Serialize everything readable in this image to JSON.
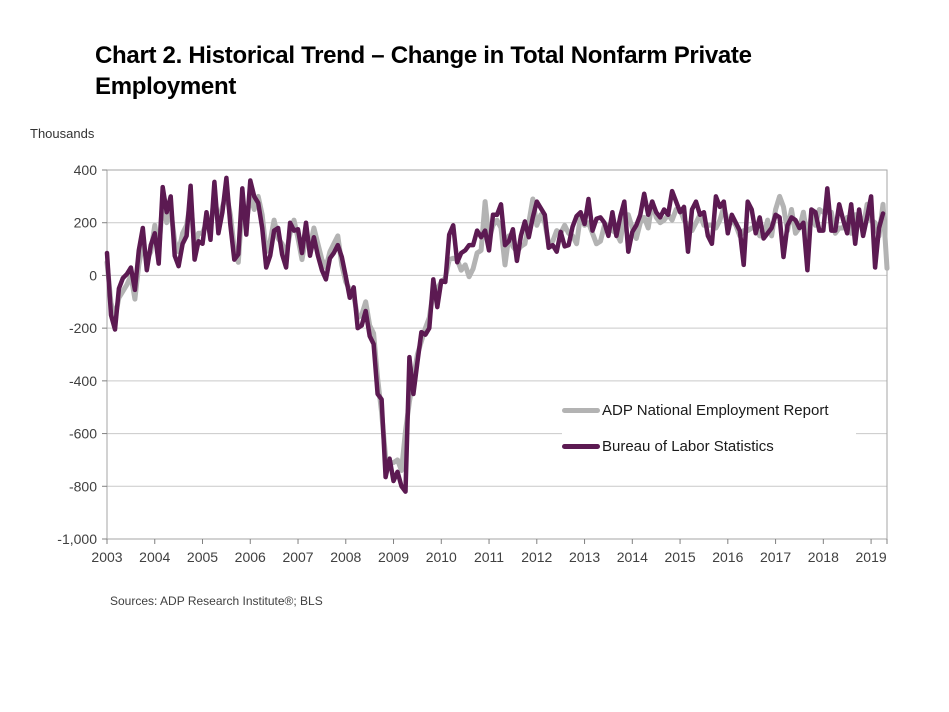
{
  "header": {
    "title_line1": "Chart 2. Historical Trend – Change in Total Nonfarm Private",
    "title_line2": "Employment"
  },
  "footer": {
    "sources": "Sources: ADP Research Institute®; BLS"
  },
  "chart_data": {
    "type": "line",
    "title": "Chart 2. Historical Trend – Change in Total Nonfarm Private Employment",
    "ylabel": "Thousands",
    "xlabel": "",
    "grid": "horizontal",
    "legend_position": "lower-right",
    "ylim": [
      -1000,
      400
    ],
    "y_tick_values": [
      400,
      200,
      0,
      -200,
      -400,
      -600,
      -800,
      -1000
    ],
    "y_tick_labels": [
      "400",
      "200",
      "0",
      "-200",
      "-400",
      "-600",
      "-800",
      "-1,000"
    ],
    "x_tick_labels": [
      "2003",
      "2004",
      "2005",
      "2006",
      "2007",
      "2008",
      "2009",
      "2010",
      "2011",
      "2012",
      "2013",
      "2014",
      "2015",
      "2016",
      "2017",
      "2018",
      "2019"
    ],
    "x_start_month": "2003-01",
    "frequency": "monthly",
    "colors": {
      "adp": "#b3b3b3",
      "bls": "#5c1a52",
      "gridline": "#c9c9c9",
      "frame": "#a6a6a6",
      "tick_text": "#404040"
    },
    "series": [
      {
        "name": "ADP National Employment Report",
        "color": "#b3b3b3",
        "values": [
          50,
          -105,
          -160,
          -85,
          -60,
          -35,
          0,
          -90,
          40,
          120,
          60,
          90,
          190,
          90,
          280,
          200,
          250,
          130,
          90,
          160,
          190,
          280,
          110,
          160,
          160,
          200,
          180,
          300,
          200,
          260,
          310,
          230,
          100,
          50,
          270,
          200,
          305,
          250,
          300,
          230,
          90,
          130,
          210,
          140,
          120,
          80,
          160,
          210,
          140,
          60,
          150,
          110,
          180,
          120,
          60,
          30,
          90,
          120,
          150,
          40,
          -25,
          -55,
          -75,
          -160,
          -150,
          -100,
          -190,
          -220,
          -390,
          -520,
          -690,
          -710,
          -710,
          -700,
          -740,
          -590,
          -480,
          -390,
          -300,
          -250,
          -200,
          -160,
          -60,
          -50,
          -25,
          -10,
          60,
          65,
          60,
          20,
          40,
          -5,
          25,
          85,
          95,
          280,
          140,
          190,
          210,
          180,
          40,
          150,
          110,
          90,
          110,
          120,
          200,
          290,
          190,
          230,
          200,
          120,
          130,
          170,
          160,
          190,
          160,
          150,
          120,
          230,
          190,
          200,
          160,
          120,
          130,
          190,
          190,
          170,
          160,
          130,
          230,
          230,
          180,
          140,
          200,
          220,
          180,
          280,
          220,
          200,
          210,
          230,
          210,
          250,
          250,
          210,
          190,
          170,
          200,
          230,
          190,
          190,
          190,
          180,
          210,
          260,
          200,
          210,
          190,
          150,
          170,
          170,
          180,
          180,
          150,
          150,
          210,
          150,
          250,
          300,
          260,
          170,
          250,
          160,
          180,
          240,
          140,
          230,
          190,
          250,
          240,
          240,
          240,
          160,
          180,
          180,
          220,
          160,
          230,
          230,
          180,
          270,
          210,
          200,
          150,
          270,
          27
        ]
      },
      {
        "name": "Bureau of Labor Statistics",
        "color": "#5c1a52",
        "values": [
          85,
          -150,
          -205,
          -50,
          -10,
          5,
          30,
          -55,
          95,
          180,
          20,
          115,
          160,
          45,
          335,
          240,
          300,
          75,
          35,
          120,
          150,
          340,
          60,
          130,
          120,
          240,
          135,
          355,
          160,
          240,
          370,
          190,
          60,
          80,
          330,
          155,
          360,
          300,
          275,
          180,
          30,
          75,
          170,
          180,
          80,
          30,
          200,
          170,
          175,
          85,
          200,
          75,
          145,
          75,
          20,
          -15,
          65,
          85,
          115,
          70,
          -5,
          -85,
          -45,
          -200,
          -190,
          -135,
          -230,
          -260,
          -450,
          -470,
          -765,
          -695,
          -780,
          -745,
          -800,
          -820,
          -310,
          -450,
          -330,
          -215,
          -225,
          -200,
          -15,
          -120,
          -20,
          -25,
          155,
          190,
          50,
          85,
          95,
          115,
          115,
          170,
          145,
          170,
          95,
          230,
          230,
          270,
          115,
          130,
          175,
          55,
          150,
          205,
          145,
          220,
          280,
          255,
          230,
          105,
          115,
          90,
          165,
          110,
          115,
          185,
          225,
          240,
          195,
          290,
          170,
          215,
          220,
          200,
          150,
          240,
          150,
          225,
          280,
          90,
          165,
          190,
          230,
          310,
          230,
          280,
          240,
          220,
          250,
          230,
          320,
          280,
          240,
          260,
          90,
          250,
          280,
          230,
          240,
          150,
          120,
          300,
          260,
          280,
          160,
          230,
          200,
          170,
          40,
          280,
          250,
          160,
          220,
          140,
          160,
          180,
          230,
          220,
          70,
          190,
          220,
          210,
          180,
          200,
          20,
          250,
          240,
          170,
          170,
          330,
          170,
          170,
          270,
          210,
          160,
          270,
          120,
          250,
          150,
          220,
          300,
          30,
          180,
          235
        ]
      }
    ]
  }
}
